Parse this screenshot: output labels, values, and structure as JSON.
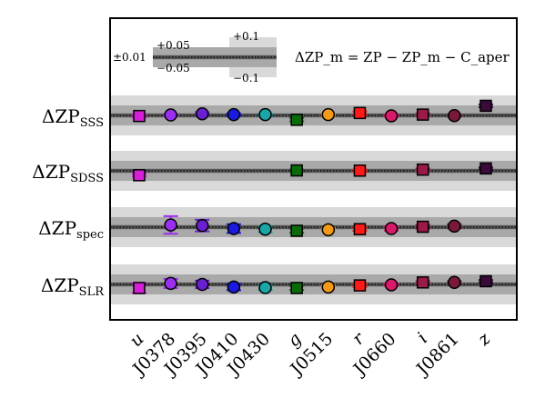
{
  "chart_data": {
    "type": "scatter",
    "title": "",
    "formula": "ΔZP_m = ZP − ZP_m − C_aper",
    "legend": {
      "band_labels": [
        "±0.01",
        "+0.05",
        "−0.05",
        "+0.1",
        "−0.1"
      ],
      "placement": "top-left"
    },
    "categories": [
      "u",
      "J0378",
      "J0395",
      "J0410",
      "J0430",
      "g",
      "J0515",
      "r",
      "J0660",
      "i",
      "J0861",
      "z"
    ],
    "colors": [
      "#d81fd8",
      "#9b2ff0",
      "#6a1fd0",
      "#1a1ae0",
      "#1aa6a6",
      "#0a6a0a",
      "#f29a1a",
      "#ff1a1a",
      "#d81a6a",
      "#9b1a4a",
      "#7a1a3a",
      "#3a0a3a"
    ],
    "markers": [
      "square",
      "circle",
      "circle",
      "circle",
      "circle",
      "square",
      "circle",
      "square",
      "circle",
      "square",
      "circle",
      "square"
    ],
    "ylim": [
      -0.12,
      0.12
    ],
    "series": [
      {
        "name": "ΔZP_SSS",
        "label_main": "ΔZP",
        "label_sub": "SSS",
        "values": [
          -0.003,
          0.002,
          0.008,
          0.004,
          0.004,
          -0.022,
          0.004,
          0.012,
          -0.002,
          0.004,
          -0.001,
          0.048
        ],
        "errors": [
          0.008,
          0.006,
          0.008,
          0.006,
          0.005,
          0.008,
          0.005,
          0.008,
          0.005,
          0.006,
          0.006,
          0.007
        ]
      },
      {
        "name": "ΔZP_SDSS",
        "label_main": "ΔZP",
        "label_sub": "SDSS",
        "values": [
          -0.022,
          null,
          null,
          null,
          null,
          0.002,
          null,
          0.001,
          null,
          0.006,
          null,
          0.012
        ],
        "errors": [
          0.006,
          null,
          null,
          null,
          null,
          0.005,
          null,
          0.005,
          null,
          0.006,
          null,
          0.005
        ]
      },
      {
        "name": "ΔZP_spec",
        "label_main": "ΔZP",
        "label_sub": "spec",
        "values": [
          null,
          0.011,
          0.008,
          -0.007,
          -0.01,
          -0.018,
          -0.013,
          -0.01,
          -0.007,
          0.002,
          0.005
        ],
        "errors": [
          null,
          0.044,
          0.029,
          0.022,
          0.016,
          0.01,
          0.008,
          0.008,
          0.01,
          0.01,
          0.01
        ]
      },
      {
        "name": "ΔZP_SLR",
        "label_main": "ΔZP",
        "label_sub": "SLR",
        "values": [
          -0.018,
          0.005,
          0.0,
          -0.013,
          -0.016,
          -0.018,
          -0.013,
          -0.005,
          -0.002,
          0.01,
          0.01,
          0.016
        ],
        "errors": [
          0.025,
          0.023,
          0.019,
          0.016,
          0.012,
          0.01,
          0.008,
          0.007,
          0.006,
          0.006,
          0.006,
          0.006
        ]
      }
    ]
  }
}
